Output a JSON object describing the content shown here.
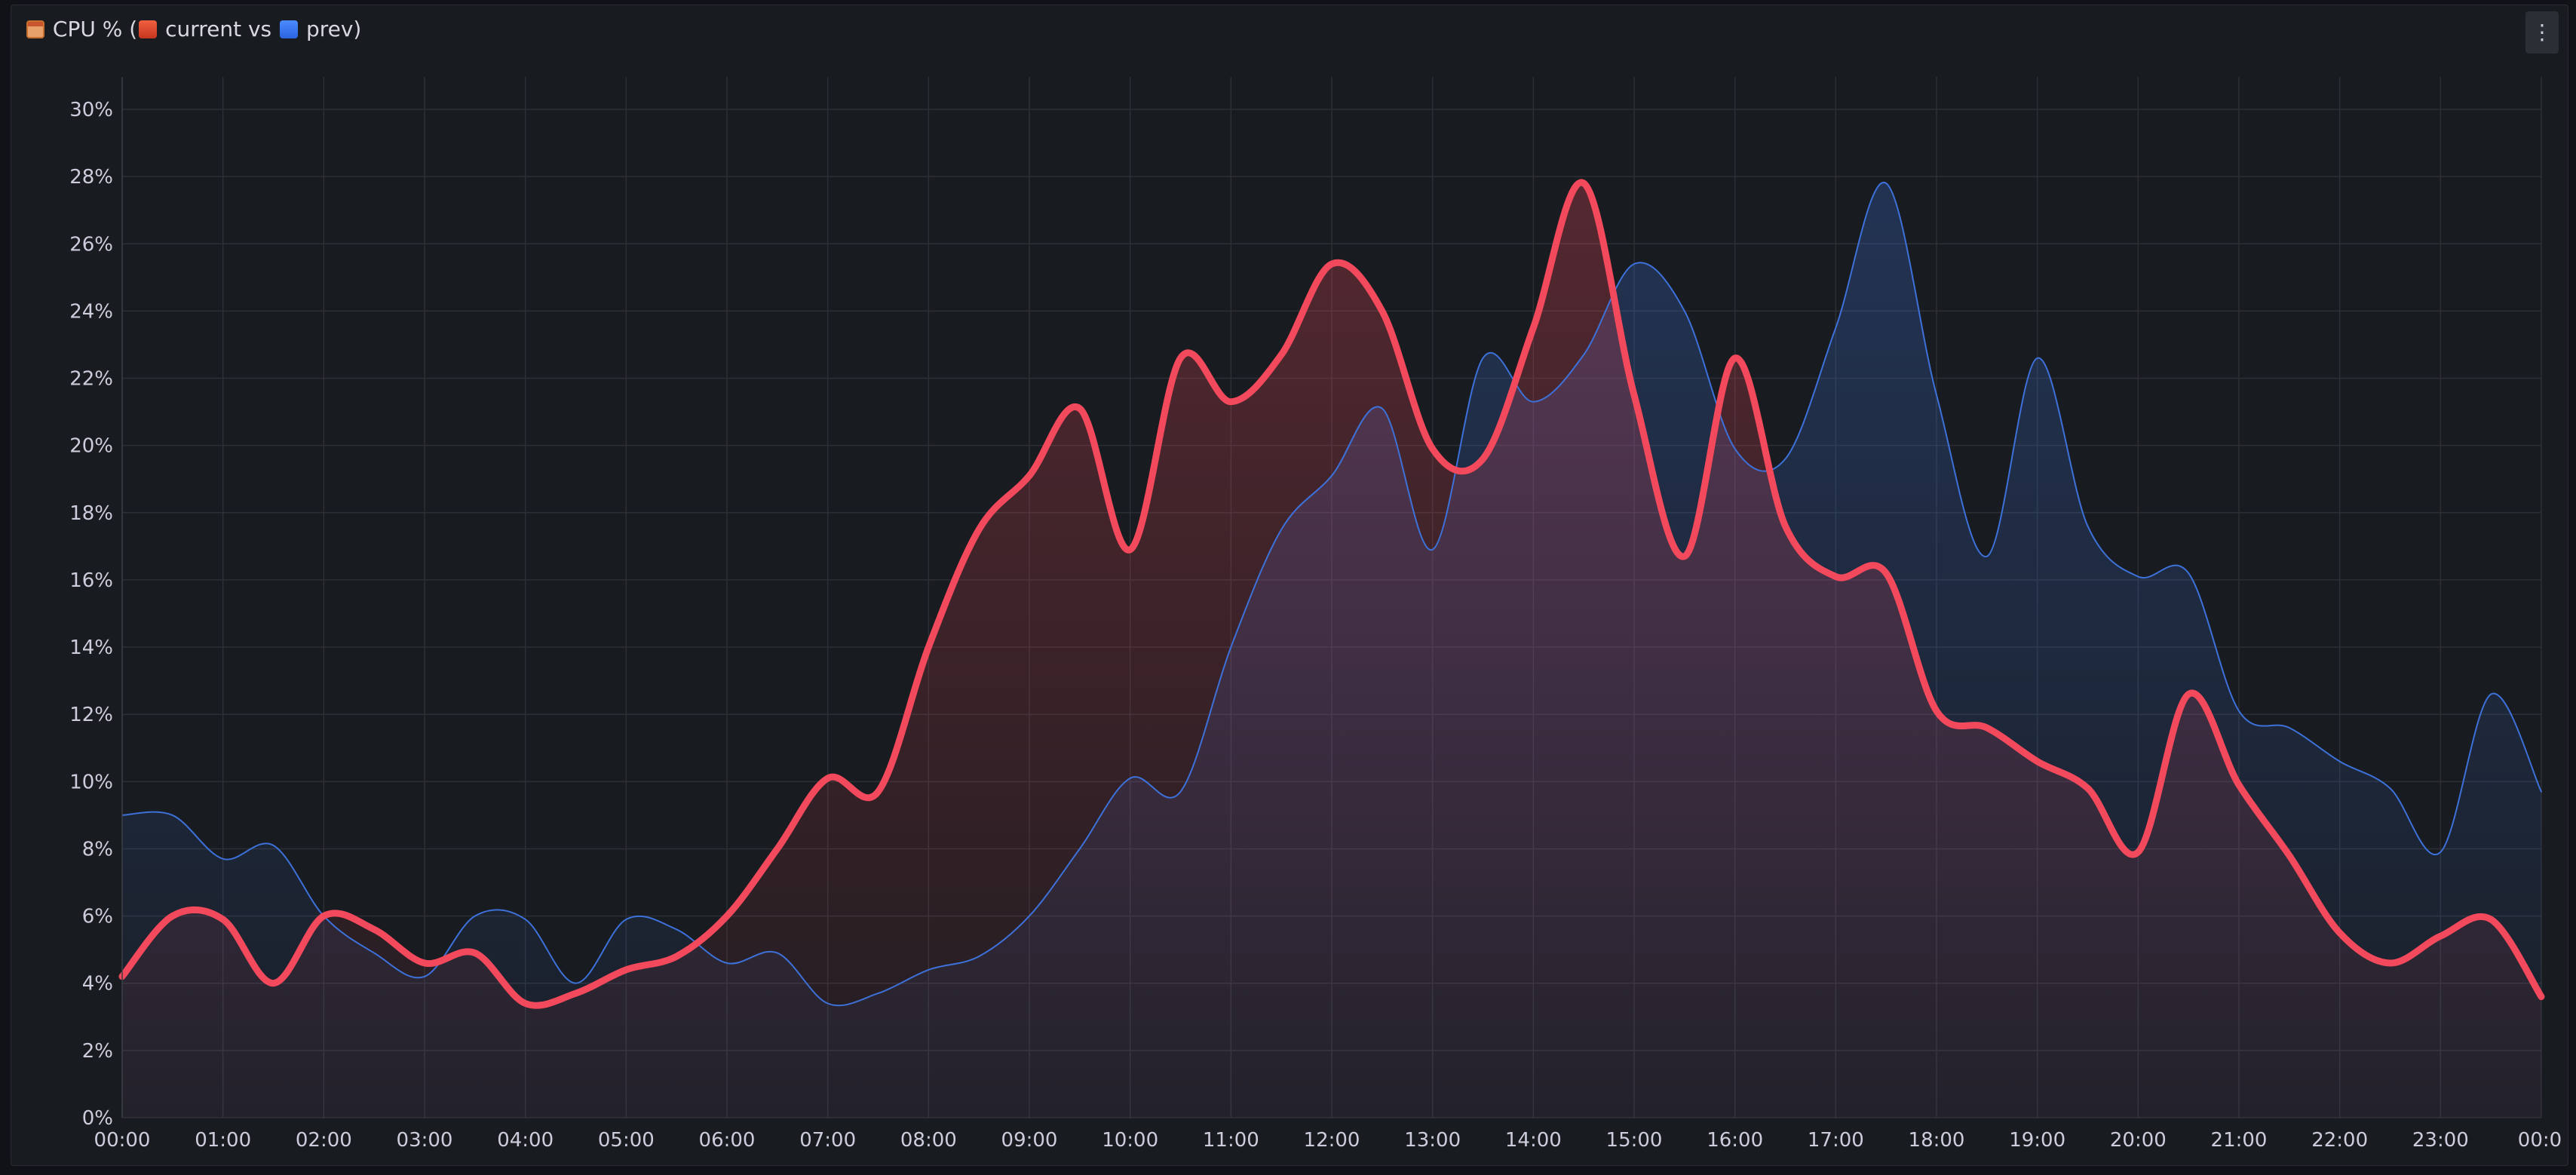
{
  "panel": {
    "title_prefix": "CPU % (",
    "title_current": "current vs",
    "title_prev": "prev)",
    "title_icon": "calendar-icon",
    "menu_icon": "vertical-ellipsis-icon",
    "menu_glyph": "⋮"
  },
  "chart_data": {
    "type": "area",
    "title": "CPU % (current vs prev)",
    "xlabel": "",
    "ylabel": "",
    "ylim": [
      0,
      31
    ],
    "yticks": [
      0,
      2,
      4,
      6,
      8,
      10,
      12,
      14,
      16,
      18,
      20,
      22,
      24,
      26,
      28,
      30
    ],
    "ytick_labels": [
      "0%",
      "2%",
      "4%",
      "6%",
      "8%",
      "10%",
      "12%",
      "14%",
      "16%",
      "18%",
      "20%",
      "22%",
      "24%",
      "26%",
      "28%",
      "30%"
    ],
    "xlim": [
      0,
      24
    ],
    "xticks": [
      0,
      1,
      2,
      3,
      4,
      5,
      6,
      7,
      8,
      9,
      10,
      11,
      12,
      13,
      14,
      15,
      16,
      17,
      18,
      19,
      20,
      21,
      22,
      23,
      24
    ],
    "xtick_labels": [
      "00:00",
      "01:00",
      "02:00",
      "03:00",
      "04:00",
      "05:00",
      "06:00",
      "07:00",
      "08:00",
      "09:00",
      "10:00",
      "11:00",
      "12:00",
      "13:00",
      "14:00",
      "15:00",
      "16:00",
      "17:00",
      "18:00",
      "19:00",
      "20:00",
      "21:00",
      "22:00",
      "23:00",
      "00:0"
    ],
    "grid": true,
    "legend": "none",
    "series": [
      {
        "name": "prev",
        "color": "#3d71d9",
        "x": [
          0,
          0.5,
          1,
          1.5,
          2,
          2.5,
          3,
          3.5,
          4,
          4.5,
          5,
          5.5,
          6,
          6.5,
          7,
          7.5,
          8,
          8.5,
          9,
          9.5,
          10,
          10.5,
          11,
          11.5,
          12,
          12.5,
          13,
          13.5,
          14,
          14.5,
          15,
          15.5,
          16,
          16.5,
          17,
          17.5,
          18,
          18.5,
          19,
          19.5,
          20,
          20.5,
          21,
          21.5,
          22,
          22.5,
          23,
          23.5,
          24
        ],
        "y": [
          9.0,
          9.0,
          7.7,
          8.1,
          6.0,
          4.9,
          4.2,
          6.0,
          5.9,
          4.0,
          5.9,
          5.6,
          4.6,
          4.9,
          3.4,
          3.7,
          4.4,
          4.8,
          6.0,
          8.0,
          10.1,
          9.7,
          14.0,
          17.5,
          19.1,
          21.1,
          16.9,
          22.6,
          21.3,
          22.7,
          25.4,
          24.0,
          19.9,
          19.6,
          23.5,
          27.8,
          21.5,
          16.7,
          22.6,
          17.6,
          16.1,
          16.2,
          12.1,
          11.6,
          10.6,
          9.8,
          7.9,
          12.6,
          9.7
        ]
      },
      {
        "name": "current",
        "color": "#f2495c",
        "x": [
          0,
          0.5,
          1,
          1.5,
          2,
          2.5,
          3,
          3.5,
          4,
          4.5,
          5,
          5.5,
          6,
          6.5,
          7,
          7.5,
          8,
          8.5,
          9,
          9.5,
          10,
          10.5,
          11,
          11.5,
          12,
          12.5,
          13,
          13.5,
          14,
          14.5,
          15,
          15.5,
          16,
          16.5,
          17,
          17.5,
          18,
          18.5,
          19,
          19.5,
          20,
          20.5,
          21,
          21.5,
          22,
          22.5,
          23,
          23.5,
          24
        ],
        "y": [
          4.2,
          6.0,
          5.9,
          4.0,
          6.0,
          5.6,
          4.6,
          4.9,
          3.4,
          3.7,
          4.4,
          4.8,
          6.0,
          8.0,
          10.1,
          9.7,
          14.0,
          17.5,
          19.1,
          21.1,
          16.9,
          22.6,
          21.3,
          22.7,
          25.4,
          24.0,
          19.9,
          19.6,
          23.5,
          27.8,
          21.5,
          16.7,
          22.6,
          17.6,
          16.1,
          16.2,
          12.1,
          11.6,
          10.6,
          9.8,
          7.9,
          12.6,
          9.9,
          7.8,
          5.5,
          4.6,
          5.4,
          5.9,
          3.6
        ]
      }
    ]
  }
}
